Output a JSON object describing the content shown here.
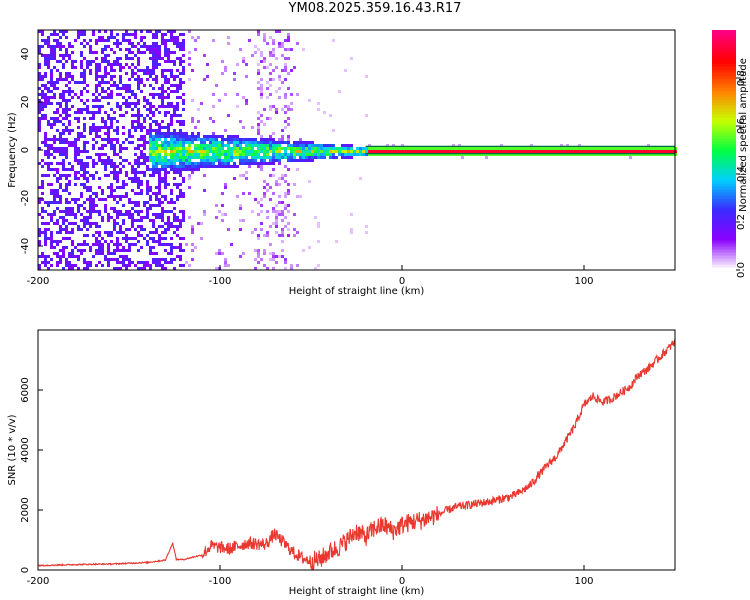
{
  "title": "YM08.2025.359.16.43.R17",
  "colors": {
    "snr_line": "#e8382f",
    "band_line": "#006b3a",
    "colormap": [
      "#ffffff",
      "#8a00ff",
      "#3a2cff",
      "#00d0ff",
      "#00ff40",
      "#c8ff00",
      "#ff8000",
      "#ff0000",
      "#ff0080"
    ]
  },
  "chart_data": [
    {
      "type": "heatmap",
      "xlabel": "Height of straight line (km)",
      "ylabel": "Frequency (Hz)",
      "xlim": [
        -200,
        150
      ],
      "ylim": [
        -50,
        50
      ],
      "xticks": [
        -200,
        -100,
        0,
        100
      ],
      "yticks": [
        -40,
        -20,
        0,
        20,
        40
      ],
      "xtick_labels": [
        "-200",
        "-100",
        "0",
        "100"
      ],
      "ytick_labels": [
        "-40",
        "-20",
        "0",
        "20",
        "40"
      ],
      "colorbar": {
        "label": "Normalized spectral amplitude",
        "range": [
          0,
          1
        ],
        "ticks": [
          0.0,
          0.2,
          0.4,
          0.6,
          0.8
        ],
        "tick_labels": [
          "0.0",
          "0.2",
          "0.4",
          "0.6",
          "0.8"
        ]
      },
      "features": {
        "strong_band_frequency": 0,
        "strong_band_start_km": -20,
        "band_outline_half_width_hz": 1.5
      }
    },
    {
      "type": "line",
      "xlabel": "Height of straight line (km)",
      "ylabel": "SNR (10 * v/v)",
      "xlim": [
        -200,
        150
      ],
      "ylim": [
        0,
        8000
      ],
      "xticks": [
        -200,
        -100,
        0,
        100
      ],
      "yticks": [
        0,
        2000,
        4000,
        6000
      ],
      "xtick_labels": [
        "-200",
        "-100",
        "0",
        "100"
      ],
      "ytick_labels": [
        "0",
        "2000",
        "4000",
        "6000"
      ],
      "series": [
        {
          "x": [
            -200,
            -180,
            -160,
            -140,
            -130,
            -126,
            -124,
            -120,
            -110,
            -105,
            -95,
            -85,
            -75,
            -70,
            -65,
            -60,
            -55,
            -50,
            -45,
            -40,
            -35,
            -30,
            -25,
            -20,
            -15,
            -10,
            -5,
            0,
            5,
            10,
            15,
            20,
            25,
            30,
            40,
            50,
            60,
            65,
            70,
            75,
            80,
            85,
            90,
            95,
            100,
            105,
            110,
            115,
            120,
            125,
            130,
            135,
            140,
            145,
            150
          ],
          "y": [
            150,
            180,
            200,
            250,
            330,
            900,
            350,
            350,
            500,
            800,
            700,
            900,
            850,
            1200,
            900,
            600,
            400,
            300,
            350,
            600,
            750,
            1000,
            1300,
            1100,
            1400,
            1500,
            1300,
            1500,
            1600,
            1650,
            1750,
            1850,
            2000,
            2100,
            2200,
            2300,
            2450,
            2600,
            2800,
            3150,
            3500,
            3800,
            4300,
            4800,
            5500,
            5800,
            5600,
            5700,
            5900,
            6100,
            6500,
            6700,
            7000,
            7300,
            7600
          ]
        }
      ]
    }
  ]
}
